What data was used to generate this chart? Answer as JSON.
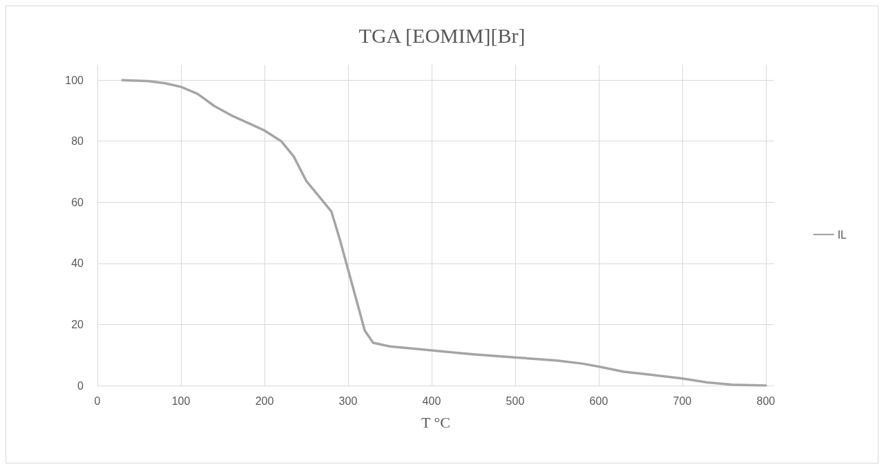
{
  "chart_data": {
    "type": "line",
    "title": "TGA [EOMIM][Br]",
    "xlabel": "T °C",
    "series": [
      {
        "name": "IL",
        "color": "#a5a5a5",
        "x": [
          30,
          60,
          80,
          100,
          120,
          140,
          160,
          180,
          200,
          220,
          235,
          250,
          265,
          280,
          290,
          300,
          310,
          320,
          330,
          350,
          400,
          450,
          500,
          550,
          580,
          600,
          630,
          660,
          700,
          730,
          760,
          800
        ],
        "values": [
          100,
          99.7,
          99,
          97.8,
          95.5,
          91.5,
          88.5,
          86,
          83.5,
          80,
          75,
          67,
          62,
          57,
          48,
          38,
          28,
          18,
          14,
          12.8,
          11.5,
          10.2,
          9.2,
          8.2,
          7.2,
          6.2,
          4.5,
          3.6,
          2.3,
          1,
          0.3,
          0
        ]
      }
    ],
    "xlim": [
      0,
      810
    ],
    "xticks": [
      0,
      100,
      200,
      300,
      400,
      500,
      600,
      700,
      800
    ],
    "ylim": [
      0,
      105
    ],
    "yticks": [
      0,
      20,
      40,
      60,
      80,
      100
    ],
    "grid": true,
    "legend": "right",
    "marker": "none",
    "line_style": "solid"
  }
}
